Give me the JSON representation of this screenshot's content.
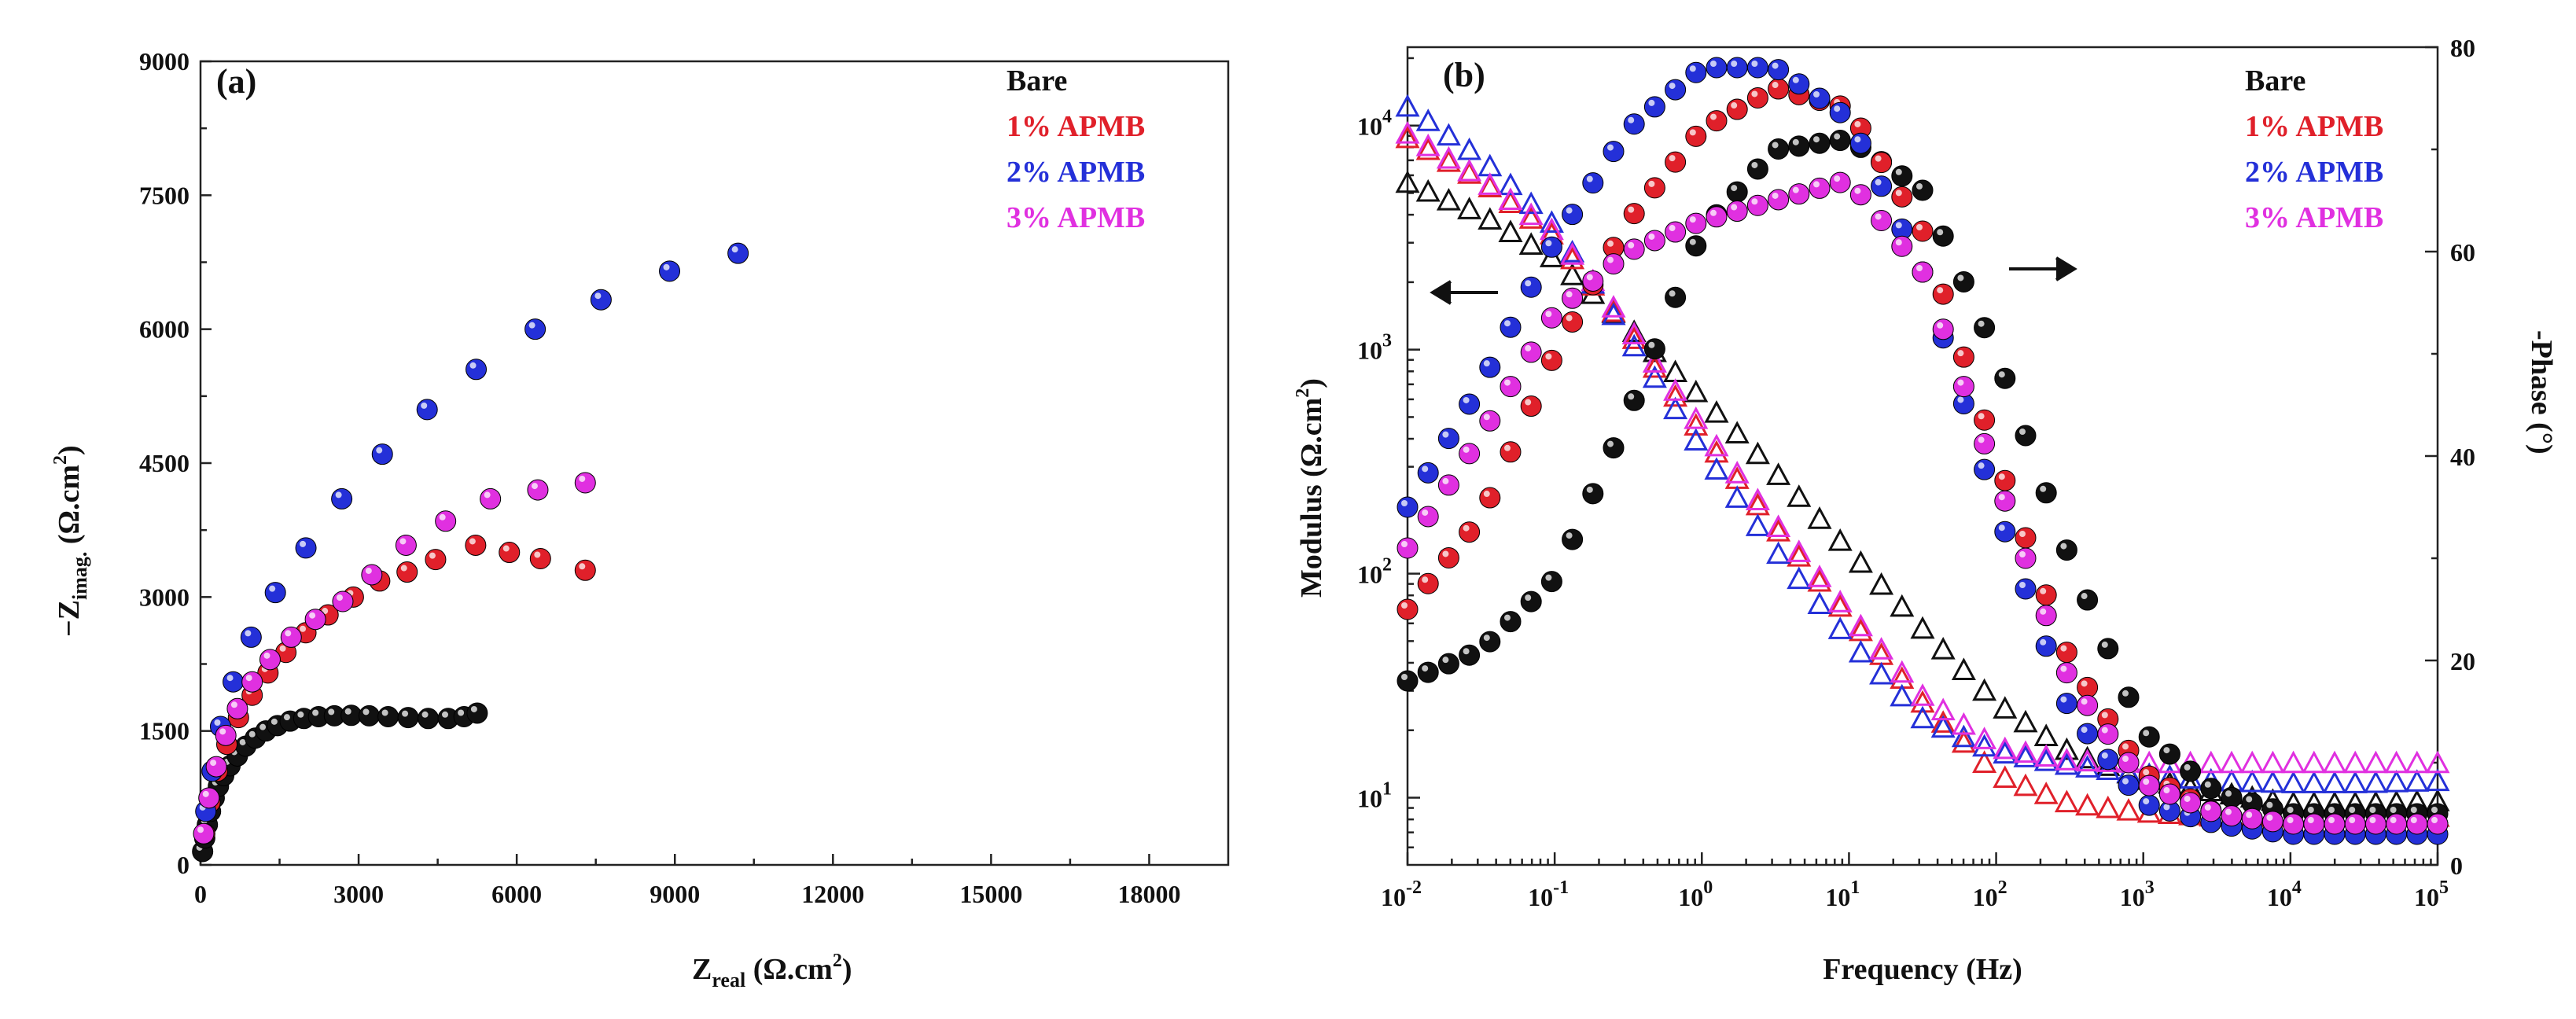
{
  "chart_data": [
    {
      "type": "scatter",
      "panel_label": "(a)",
      "title": "",
      "xlabel": {
        "main": "Z",
        "sub": "real",
        "unit_pre": " (Ω.cm",
        "sup": "2",
        "unit_post": ")"
      },
      "ylabel": {
        "pre": "−Z",
        "sub": "imag.",
        "unit_pre": " (Ω.cm",
        "sup": "2",
        "unit_post": ")"
      },
      "xlim": [
        0,
        19500
      ],
      "ylim": [
        0,
        9000
      ],
      "xticks": [
        "0",
        "3000",
        "6000",
        "9000",
        "12000",
        "15000",
        "18000"
      ],
      "yticks": [
        "0",
        "1500",
        "3000",
        "4500",
        "6000",
        "7500",
        "9000"
      ],
      "xtick_values": [
        0,
        3000,
        6000,
        9000,
        12000,
        15000,
        18000
      ],
      "ytick_values": [
        0,
        1500,
        3000,
        4500,
        6000,
        7500,
        9000
      ],
      "legend": [
        {
          "label": "Bare",
          "color": "#111111"
        },
        {
          "label": "1% APMB",
          "color": "#e0202a"
        },
        {
          "label": "2% APMB",
          "color": "#2430d8"
        },
        {
          "label": "3% APMB",
          "color": "#e030e0"
        }
      ],
      "series": [
        {
          "name": "Bare",
          "color": "#111111",
          "x": [
            40,
            80,
            130,
            190,
            260,
            340,
            440,
            560,
            700,
            860,
            1040,
            1240,
            1460,
            1700,
            1960,
            2240,
            2540,
            2860,
            3200,
            3560,
            3940,
            4320,
            4700,
            5000,
            5250
          ],
          "y": [
            150,
            300,
            450,
            600,
            750,
            880,
            1000,
            1110,
            1220,
            1330,
            1420,
            1500,
            1560,
            1610,
            1640,
            1660,
            1670,
            1675,
            1670,
            1660,
            1650,
            1640,
            1640,
            1660,
            1700
          ]
        },
        {
          "name": "1% APMB",
          "color": "#e0202a",
          "x": [
            80,
            180,
            320,
            500,
            720,
            980,
            1280,
            1620,
            2000,
            2420,
            2900,
            3400,
            3920,
            4460,
            5220,
            5860,
            6450,
            7300
          ],
          "y": [
            350,
            700,
            1050,
            1350,
            1650,
            1900,
            2150,
            2380,
            2600,
            2800,
            3000,
            3180,
            3280,
            3420,
            3580,
            3500,
            3430,
            3300
          ]
        },
        {
          "name": "2% APMB",
          "color": "#2430d8",
          "x": [
            100,
            220,
            380,
            620,
            960,
            1420,
            2000,
            2680,
            3450,
            4300,
            5230,
            6350,
            7600,
            8900,
            10200
          ],
          "y": [
            600,
            1050,
            1550,
            2050,
            2550,
            3050,
            3550,
            4100,
            4600,
            5100,
            5550,
            6000,
            6330,
            6650,
            6850
          ]
        },
        {
          "name": "3% APMB",
          "color": "#e030e0",
          "x": [
            60,
            160,
            300,
            480,
            700,
            980,
            1320,
            1720,
            2180,
            2700,
            3250,
            3900,
            4650,
            5500,
            6400,
            7300
          ],
          "y": [
            350,
            750,
            1100,
            1450,
            1750,
            2050,
            2300,
            2550,
            2750,
            2950,
            3250,
            3580,
            3850,
            4100,
            4200,
            4280
          ]
        }
      ]
    },
    {
      "type": "scatter",
      "panel_label": "(b)",
      "title": "",
      "xlabel": "Frequency (Hz)",
      "ylabel_left": {
        "pre": "Modulus (Ω.cm",
        "sup": "2",
        "post": ")"
      },
      "ylabel_right": "-Phase (°)",
      "xscale": "log",
      "yscale_left": "log",
      "xlim_log10": [
        -2,
        5
      ],
      "ylim_left_log10": [
        0.7,
        4.35
      ],
      "ylim_right": [
        0,
        80
      ],
      "xticks": [
        {
          "base": "10",
          "exp": "-2"
        },
        {
          "base": "10",
          "exp": "-1"
        },
        {
          "base": "10",
          "exp": "0"
        },
        {
          "base": "10",
          "exp": "1"
        },
        {
          "base": "10",
          "exp": "2"
        },
        {
          "base": "10",
          "exp": "3"
        },
        {
          "base": "10",
          "exp": "4"
        },
        {
          "base": "10",
          "exp": "5"
        }
      ],
      "xtick_values_log10": [
        -2,
        -1,
        0,
        1,
        2,
        3,
        4,
        5
      ],
      "yticks_left": [
        {
          "base": "10",
          "exp": "1"
        },
        {
          "base": "10",
          "exp": "2"
        },
        {
          "base": "10",
          "exp": "3"
        },
        {
          "base": "10",
          "exp": "4"
        }
      ],
      "ytick_values_left_log10": [
        1,
        2,
        3,
        4
      ],
      "yticks_right": [
        "0",
        "20",
        "40",
        "60",
        "80"
      ],
      "ytick_values_right": [
        0,
        20,
        40,
        60,
        80
      ],
      "legend": [
        {
          "label": "Bare",
          "color": "#111111"
        },
        {
          "label": "1% APMB",
          "color": "#e0202a"
        },
        {
          "label": "2% APMB",
          "color": "#2430d8"
        },
        {
          "label": "3% APMB",
          "color": "#e030e0"
        }
      ],
      "modulus_series": [
        {
          "name": "Bare",
          "color": "#111111",
          "log_f": [
            -2,
            -1.5,
            -1,
            -0.5,
            0,
            0.5,
            1,
            1.5,
            2,
            2.5,
            3,
            3.5,
            4,
            4.5,
            5
          ],
          "log_mod": [
            3.74,
            3.6,
            3.4,
            3.1,
            2.78,
            2.45,
            2.1,
            1.75,
            1.42,
            1.2,
            1.08,
            1.02,
            0.97,
            0.97,
            0.98
          ]
        },
        {
          "name": "1% APMB",
          "color": "#e0202a",
          "log_f": [
            -2,
            -1.5,
            -1,
            -0.5,
            0,
            0.5,
            1,
            1.5,
            2,
            2.5,
            3,
            3.5,
            4,
            4.5,
            5
          ],
          "log_mod": [
            3.94,
            3.75,
            3.5,
            3.08,
            2.62,
            2.2,
            1.8,
            1.42,
            1.1,
            0.97,
            0.93,
            0.91,
            0.91,
            0.91,
            0.91
          ]
        },
        {
          "name": "2% APMB",
          "color": "#2430d8",
          "log_f": [
            -2,
            -1.5,
            -1,
            -0.5,
            0,
            0.5,
            1,
            1.5,
            2,
            2.5,
            3,
            3.5,
            4,
            4.5,
            5
          ],
          "log_mod": [
            4.08,
            3.85,
            3.55,
            3.05,
            2.55,
            2.1,
            1.7,
            1.35,
            1.2,
            1.14,
            1.1,
            1.07,
            1.06,
            1.06,
            1.07
          ]
        },
        {
          "name": "3% APMB",
          "color": "#e030e0",
          "log_f": [
            -2,
            -1.5,
            -1,
            -0.5,
            0,
            0.5,
            1,
            1.5,
            2,
            2.5,
            3,
            3.5,
            4,
            4.5,
            5
          ],
          "log_mod": [
            3.96,
            3.76,
            3.52,
            3.1,
            2.65,
            2.22,
            1.82,
            1.45,
            1.22,
            1.16,
            1.15,
            1.15,
            1.15,
            1.15,
            1.15
          ]
        }
      ],
      "phase_series": [
        {
          "name": "Bare",
          "color": "#111111",
          "log_f": [
            -2,
            -1.5,
            -1,
            -0.5,
            0,
            0.5,
            1,
            1.5,
            2,
            2.5,
            3,
            3.5,
            4,
            4.5,
            5
          ],
          "phase": [
            18,
            21,
            28,
            44,
            62,
            70,
            71,
            66,
            50,
            30,
            13,
            7,
            5,
            5,
            5
          ]
        },
        {
          "name": "1% APMB",
          "color": "#e0202a",
          "log_f": [
            -2,
            -1.5,
            -1,
            -0.5,
            0,
            0.5,
            1,
            1.5,
            2,
            2.5,
            3,
            3.5,
            4,
            4.5,
            5
          ],
          "phase": [
            25,
            34,
            50,
            63,
            72,
            76,
            74,
            62,
            40,
            20,
            9,
            5,
            4,
            4,
            4
          ]
        },
        {
          "name": "2% APMB",
          "color": "#2430d8",
          "log_f": [
            -2,
            -1.5,
            -1,
            -0.5,
            0,
            0.5,
            1,
            1.5,
            2,
            2.5,
            3,
            3.5,
            4,
            4.5,
            5
          ],
          "phase": [
            35,
            47,
            61,
            72,
            78,
            78,
            73,
            58,
            35,
            15,
            6,
            4,
            3,
            3,
            3
          ]
        },
        {
          "name": "3% APMB",
          "color": "#e030e0",
          "log_f": [
            -2,
            -1.5,
            -1,
            -0.5,
            0,
            0.5,
            1,
            1.5,
            2,
            2.5,
            3,
            3.5,
            4,
            4.5,
            5
          ],
          "phase": [
            31,
            42,
            54,
            60,
            63,
            65,
            67,
            58,
            38,
            18,
            8,
            5,
            4,
            4,
            4
          ]
        }
      ]
    }
  ]
}
